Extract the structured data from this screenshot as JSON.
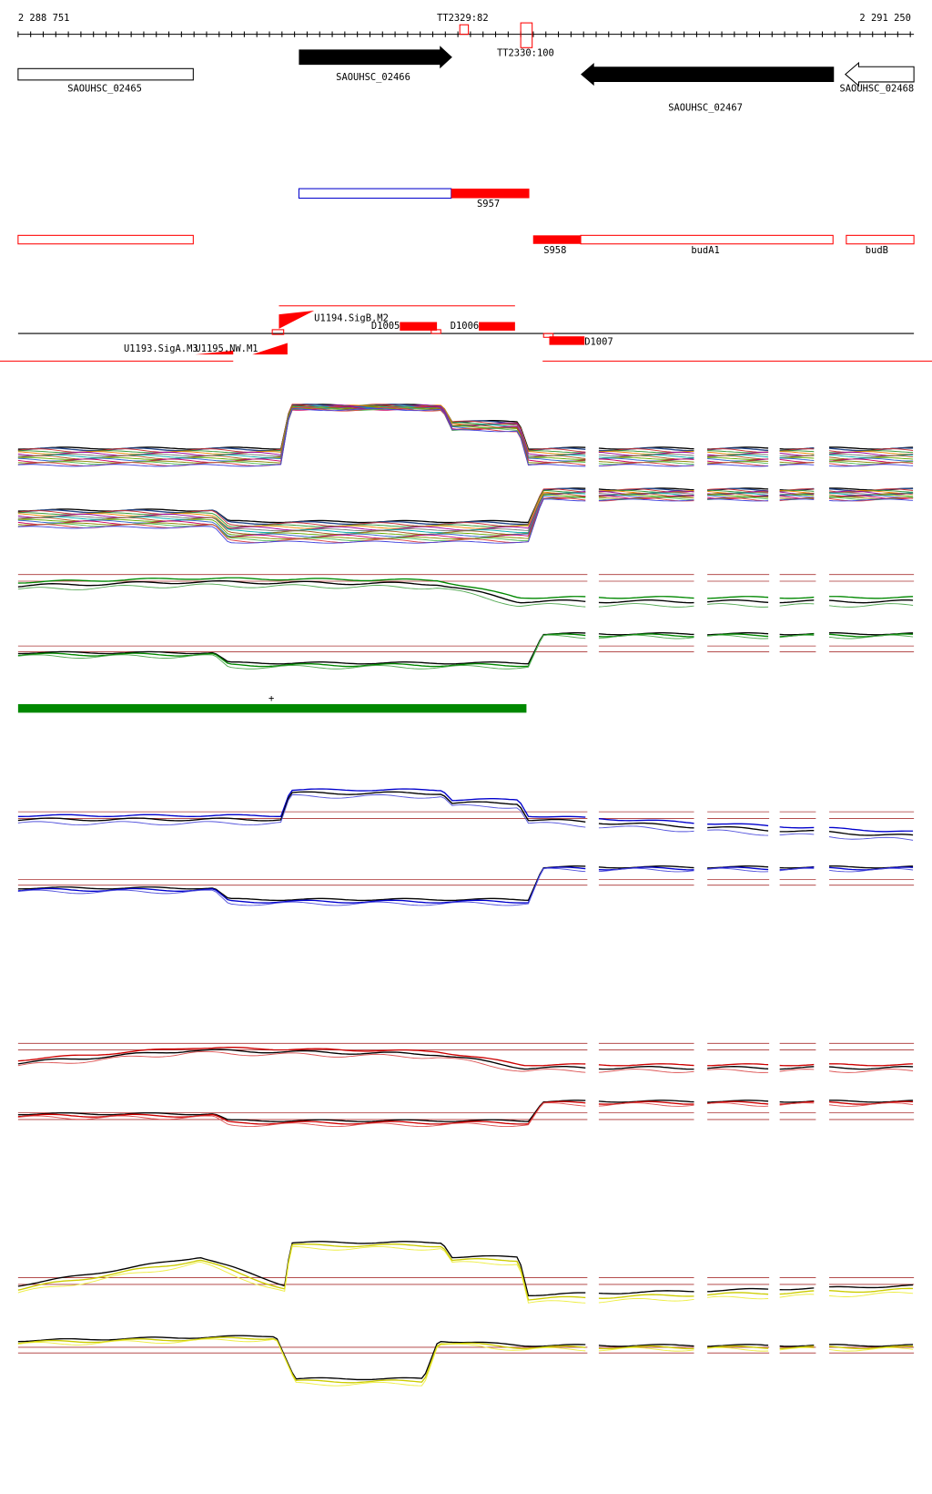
{
  "header": {
    "start": "2 288 751",
    "end": "2 291 250"
  },
  "terminators": [
    "TT2329:82",
    "TT2330:100"
  ],
  "genes": [
    "SAOUHSC_02465",
    "SAOUHSC_02466",
    "SAOUHSC_02467",
    "SAOUHSC_02468"
  ],
  "rnas": [
    "S957",
    "S958",
    "budA1",
    "budB"
  ],
  "features": [
    "U1194.SigB.M2",
    "D1005",
    "D1006",
    "U1193.SigA.M3",
    "U1195.NW.M1",
    "D1007"
  ],
  "marker": "+"
}
